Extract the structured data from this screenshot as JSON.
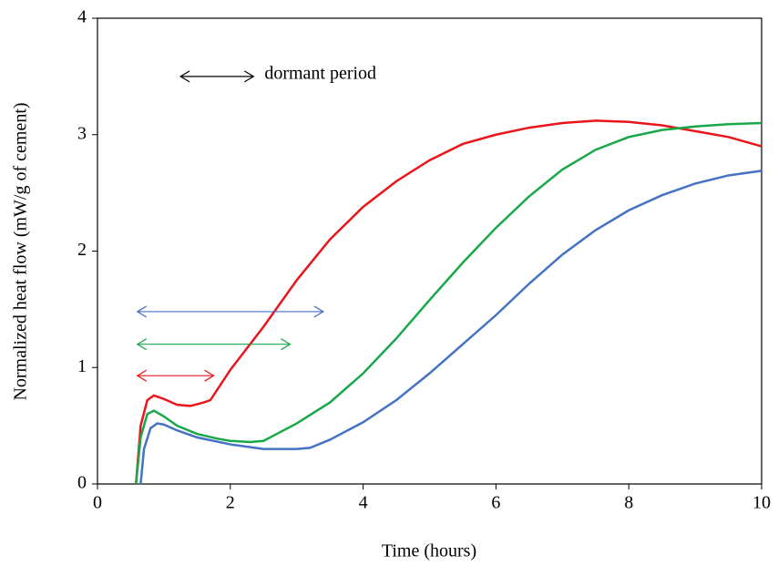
{
  "chart_data": {
    "type": "line",
    "xlabel": "Time (hours)",
    "ylabel": "Normalized heat flow (mW/g of cement)",
    "xlim": [
      0,
      10
    ],
    "xticks": [
      0,
      2,
      4,
      6,
      8,
      10
    ],
    "ylim": [
      0,
      4
    ],
    "yticks": [
      0,
      1,
      2,
      3,
      4
    ],
    "series": [
      {
        "color": "#e8161b",
        "x": [
          0.58,
          0.65,
          0.75,
          0.85,
          1.0,
          1.2,
          1.4,
          1.6,
          1.7,
          2.0,
          2.5,
          3.0,
          3.5,
          4.0,
          4.5,
          5.0,
          5.5,
          6.0,
          6.5,
          7.0,
          7.5,
          8.0,
          8.5,
          9.0,
          9.5,
          10.0
        ],
        "values": [
          0,
          0.5,
          0.72,
          0.76,
          0.73,
          0.68,
          0.67,
          0.7,
          0.72,
          0.98,
          1.35,
          1.75,
          2.1,
          2.38,
          2.6,
          2.78,
          2.92,
          3.0,
          3.06,
          3.1,
          3.12,
          3.11,
          3.08,
          3.03,
          2.98,
          2.9
        ]
      },
      {
        "color": "#18a84a",
        "x": [
          0.58,
          0.65,
          0.75,
          0.85,
          1.0,
          1.2,
          1.5,
          1.8,
          2.0,
          2.3,
          2.5,
          2.7,
          3.0,
          3.5,
          4.0,
          4.5,
          5.0,
          5.5,
          6.0,
          6.5,
          7.0,
          7.5,
          8.0,
          8.5,
          9.0,
          9.5,
          10.0
        ],
        "values": [
          0,
          0.4,
          0.6,
          0.63,
          0.58,
          0.5,
          0.43,
          0.39,
          0.37,
          0.36,
          0.37,
          0.43,
          0.52,
          0.7,
          0.95,
          1.25,
          1.58,
          1.9,
          2.2,
          2.47,
          2.7,
          2.87,
          2.98,
          3.04,
          3.07,
          3.09,
          3.1
        ]
      },
      {
        "color": "#4472c4",
        "x": [
          0.65,
          0.7,
          0.8,
          0.9,
          1.0,
          1.2,
          1.5,
          2.0,
          2.5,
          3.0,
          3.2,
          3.5,
          4.0,
          4.5,
          5.0,
          5.5,
          6.0,
          6.5,
          7.0,
          7.5,
          8.0,
          8.5,
          9.0,
          9.5,
          10.0
        ],
        "values": [
          0,
          0.3,
          0.48,
          0.52,
          0.51,
          0.46,
          0.4,
          0.34,
          0.3,
          0.3,
          0.31,
          0.38,
          0.53,
          0.72,
          0.95,
          1.2,
          1.45,
          1.72,
          1.97,
          2.18,
          2.35,
          2.48,
          2.58,
          2.65,
          2.69
        ]
      }
    ],
    "annotations": [
      {
        "text": "dormant period",
        "x": [
          1.25,
          2.35
        ],
        "y": 3.5,
        "color": "#000000"
      },
      {
        "x": [
          0.6,
          3.4
        ],
        "y": 1.48,
        "color": "#4472c4"
      },
      {
        "x": [
          0.6,
          2.9
        ],
        "y": 1.2,
        "color": "#18a84a"
      },
      {
        "x": [
          0.6,
          1.75
        ],
        "y": 0.93,
        "color": "#e8161b"
      }
    ]
  }
}
